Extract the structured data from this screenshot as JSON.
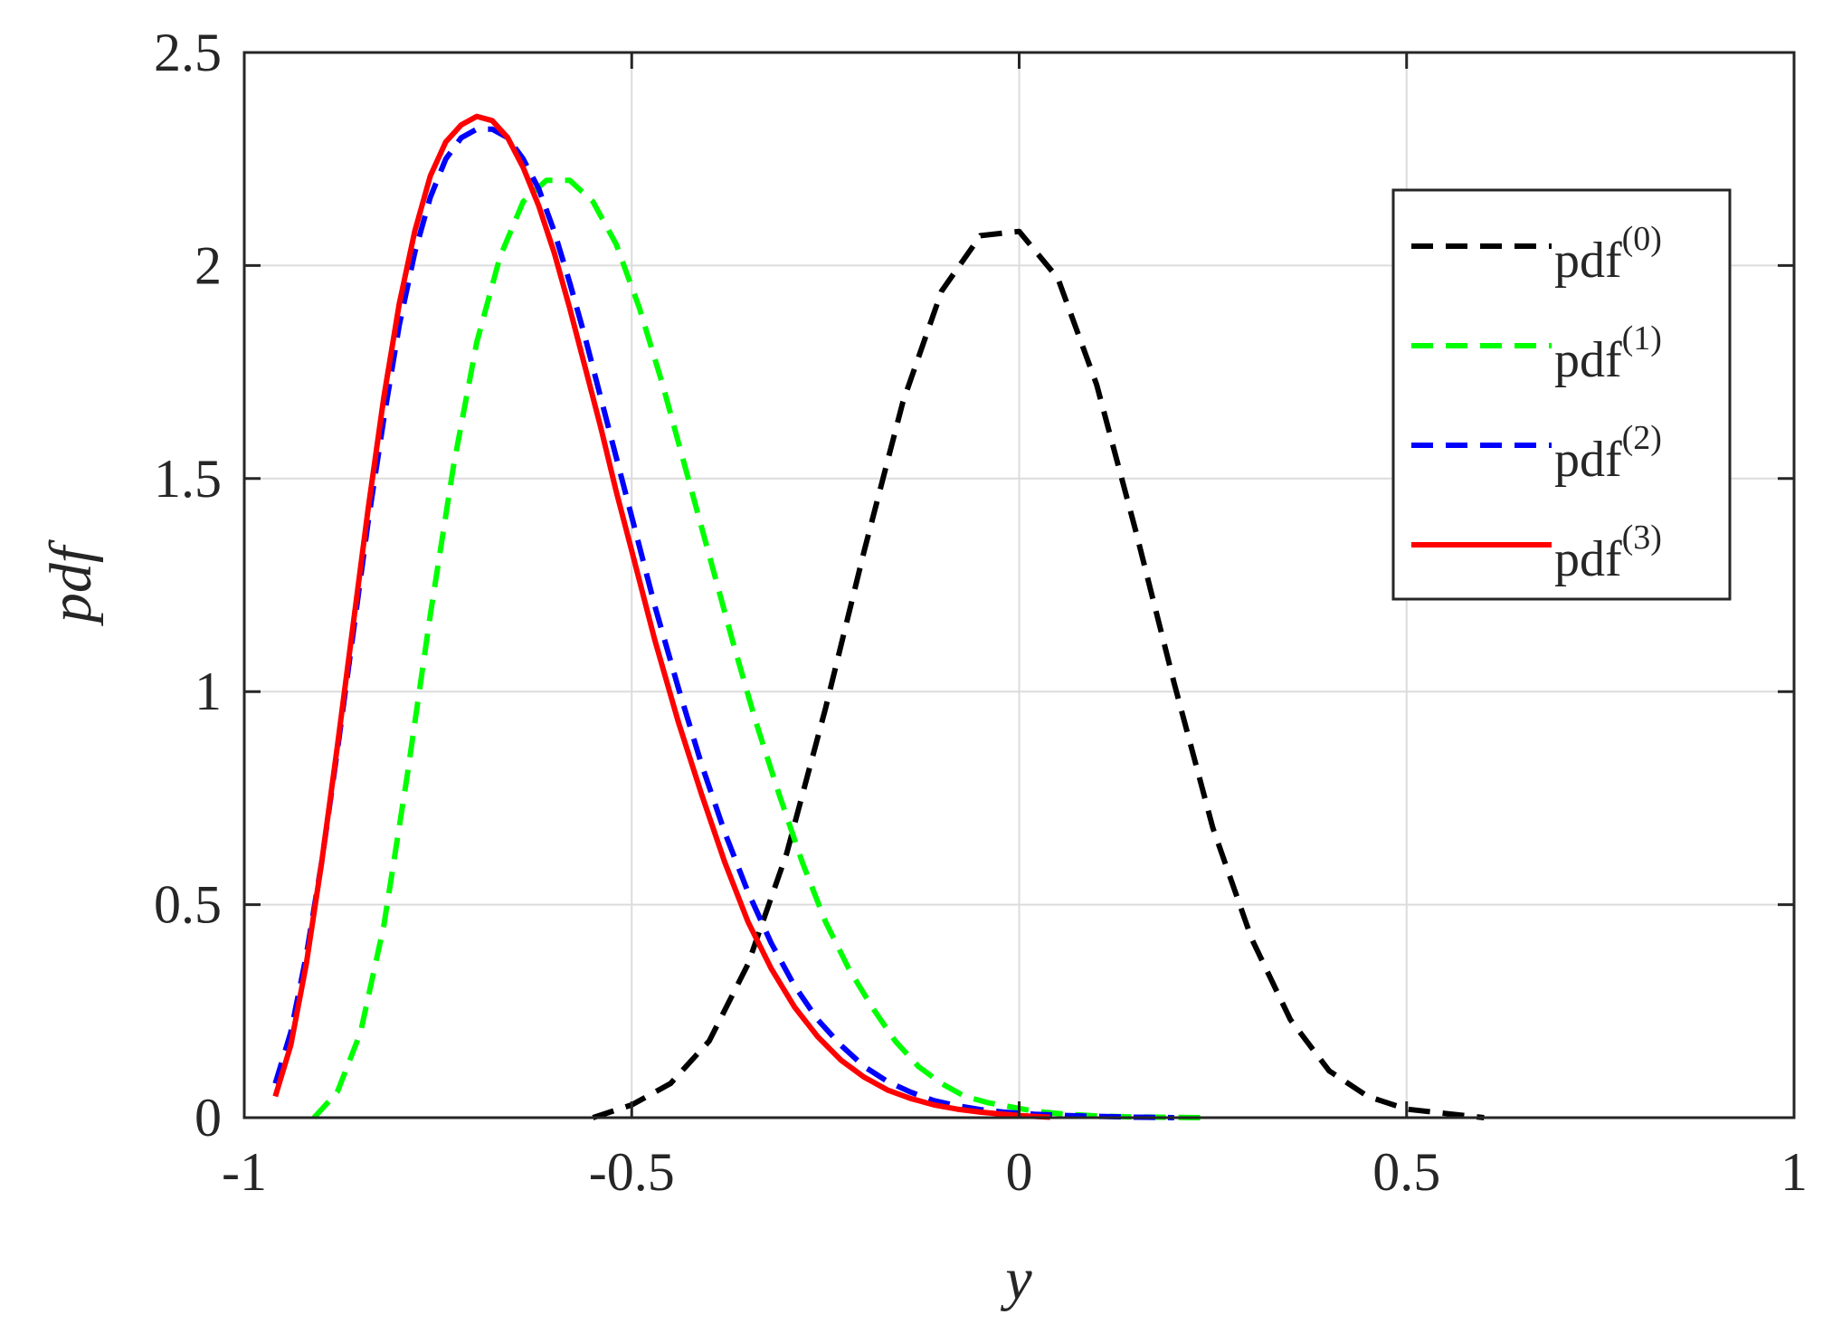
{
  "chart_data": {
    "type": "line",
    "title": "",
    "xlabel": "y",
    "ylabel": "pdf",
    "xlim": [
      -1,
      1
    ],
    "ylim": [
      0,
      2.5
    ],
    "xticks": [
      -1,
      -0.5,
      0,
      0.5,
      1
    ],
    "xtick_labels": [
      "-1",
      "-0.5",
      "0",
      "0.5",
      "1"
    ],
    "yticks": [
      0,
      0.5,
      1,
      1.5,
      2,
      2.5
    ],
    "ytick_labels": [
      "0",
      "0.5",
      "1",
      "1.5",
      "2",
      "2.5"
    ],
    "grid": true,
    "legend_position": "top-right",
    "series": [
      {
        "name": "pdf",
        "superscript": "(0)",
        "color": "#000000",
        "style": "dashed",
        "x": [
          -0.55,
          -0.5,
          -0.45,
          -0.4,
          -0.35,
          -0.3,
          -0.25,
          -0.2,
          -0.15,
          -0.1,
          -0.05,
          0.0,
          0.05,
          0.1,
          0.15,
          0.2,
          0.25,
          0.3,
          0.35,
          0.4,
          0.45,
          0.5,
          0.55,
          0.6
        ],
        "y": [
          0.0,
          0.03,
          0.08,
          0.18,
          0.36,
          0.62,
          0.96,
          1.33,
          1.68,
          1.94,
          2.07,
          2.08,
          1.97,
          1.72,
          1.38,
          1.02,
          0.68,
          0.42,
          0.23,
          0.11,
          0.05,
          0.02,
          0.01,
          0.0
        ]
      },
      {
        "name": "pdf",
        "superscript": "(1)",
        "color": "#00ff00",
        "style": "dashed",
        "x": [
          -0.91,
          -0.88,
          -0.85,
          -0.82,
          -0.79,
          -0.76,
          -0.73,
          -0.7,
          -0.67,
          -0.64,
          -0.61,
          -0.58,
          -0.55,
          -0.52,
          -0.49,
          -0.46,
          -0.43,
          -0.4,
          -0.37,
          -0.34,
          -0.31,
          -0.28,
          -0.25,
          -0.22,
          -0.19,
          -0.16,
          -0.13,
          -0.1,
          -0.07,
          -0.04,
          -0.01,
          0.02,
          0.06,
          0.1,
          0.14,
          0.18,
          0.24
        ],
        "y": [
          0.0,
          0.06,
          0.2,
          0.45,
          0.8,
          1.18,
          1.53,
          1.82,
          2.02,
          2.15,
          2.2,
          2.2,
          2.15,
          2.05,
          1.9,
          1.72,
          1.52,
          1.32,
          1.12,
          0.93,
          0.76,
          0.6,
          0.46,
          0.35,
          0.26,
          0.18,
          0.12,
          0.08,
          0.05,
          0.035,
          0.025,
          0.015,
          0.008,
          0.004,
          0.002,
          0.001,
          0.0
        ]
      },
      {
        "name": "pdf",
        "superscript": "(2)",
        "color": "#0000ff",
        "style": "dashed",
        "x": [
          -0.96,
          -0.94,
          -0.92,
          -0.9,
          -0.88,
          -0.86,
          -0.84,
          -0.82,
          -0.8,
          -0.78,
          -0.76,
          -0.74,
          -0.72,
          -0.7,
          -0.68,
          -0.66,
          -0.64,
          -0.62,
          -0.6,
          -0.58,
          -0.56,
          -0.54,
          -0.52,
          -0.5,
          -0.47,
          -0.44,
          -0.41,
          -0.38,
          -0.35,
          -0.32,
          -0.29,
          -0.26,
          -0.23,
          -0.2,
          -0.17,
          -0.14,
          -0.11,
          -0.08,
          -0.05,
          -0.02,
          0.02,
          0.06,
          0.1,
          0.15,
          0.2
        ],
        "y": [
          0.08,
          0.2,
          0.38,
          0.6,
          0.86,
          1.13,
          1.4,
          1.64,
          1.86,
          2.03,
          2.16,
          2.25,
          2.3,
          2.32,
          2.32,
          2.3,
          2.25,
          2.18,
          2.08,
          1.96,
          1.83,
          1.69,
          1.55,
          1.41,
          1.2,
          1.01,
          0.83,
          0.67,
          0.53,
          0.41,
          0.31,
          0.23,
          0.17,
          0.12,
          0.085,
          0.06,
          0.04,
          0.028,
          0.019,
          0.013,
          0.008,
          0.005,
          0.003,
          0.001,
          0.0
        ]
      },
      {
        "name": "pdf",
        "superscript": "(3)",
        "color": "#ff0000",
        "style": "solid",
        "x": [
          -0.96,
          -0.94,
          -0.92,
          -0.9,
          -0.88,
          -0.86,
          -0.84,
          -0.82,
          -0.8,
          -0.78,
          -0.76,
          -0.74,
          -0.72,
          -0.7,
          -0.68,
          -0.66,
          -0.64,
          -0.62,
          -0.6,
          -0.58,
          -0.56,
          -0.54,
          -0.52,
          -0.5,
          -0.47,
          -0.44,
          -0.41,
          -0.38,
          -0.35,
          -0.32,
          -0.29,
          -0.26,
          -0.23,
          -0.2,
          -0.17,
          -0.14,
          -0.11,
          -0.08,
          -0.05,
          -0.02,
          0.0,
          0.02,
          0.04
        ],
        "y": [
          0.05,
          0.17,
          0.36,
          0.6,
          0.87,
          1.15,
          1.43,
          1.69,
          1.91,
          2.08,
          2.21,
          2.29,
          2.33,
          2.35,
          2.34,
          2.3,
          2.23,
          2.14,
          2.03,
          1.9,
          1.76,
          1.62,
          1.47,
          1.33,
          1.12,
          0.93,
          0.76,
          0.6,
          0.46,
          0.35,
          0.26,
          0.19,
          0.135,
          0.095,
          0.065,
          0.045,
          0.03,
          0.02,
          0.013,
          0.008,
          0.005,
          0.003,
          0.001
        ]
      }
    ]
  }
}
